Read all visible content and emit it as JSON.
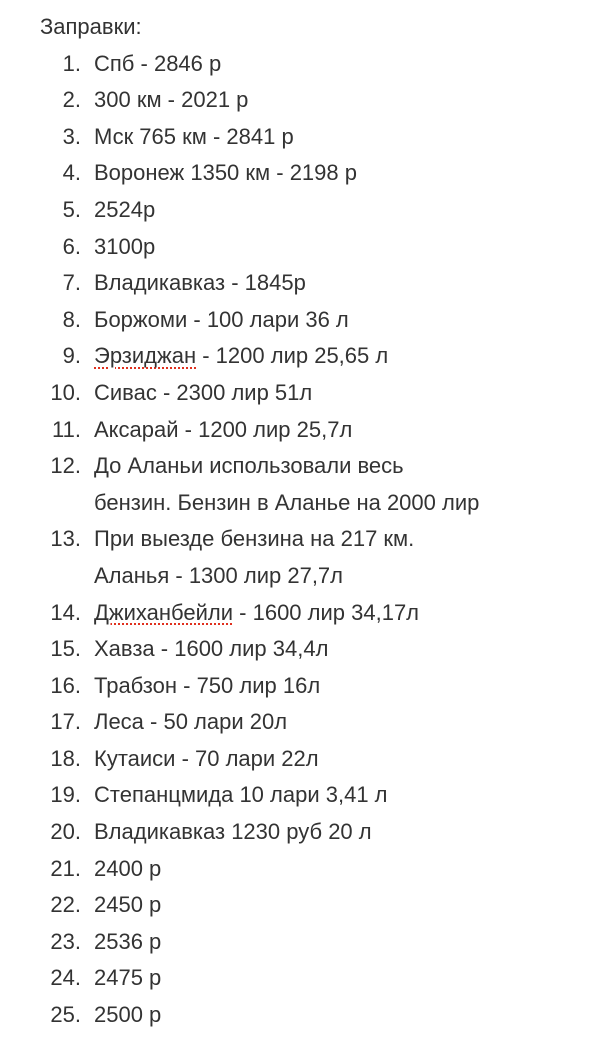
{
  "note": {
    "title": "Заправки:",
    "items": [
      {
        "num": "1.",
        "lines": [
          "Спб - 2846 р"
        ]
      },
      {
        "num": "2.",
        "lines": [
          "300 км - 2021 р"
        ]
      },
      {
        "num": "3.",
        "lines": [
          "Мск 765 км - 2841 р"
        ]
      },
      {
        "num": "4.",
        "lines": [
          "Воронеж 1350 км - 2198 р"
        ]
      },
      {
        "num": "5.",
        "lines": [
          "2524р"
        ]
      },
      {
        "num": "6.",
        "lines": [
          "3100р"
        ]
      },
      {
        "num": "7.",
        "lines": [
          "Владикавказ - 1845р"
        ]
      },
      {
        "num": "8.",
        "lines": [
          "Боржоми - 100 лари 36 л"
        ]
      },
      {
        "num": "9.",
        "misspelled": "Эрзиджан",
        "lines": [
          " - 1200 лир 25,65 л"
        ]
      },
      {
        "num": "10.",
        "lines": [
          "Сивас - 2300 лир 51л"
        ]
      },
      {
        "num": "11.",
        "lines": [
          "Аксарай - 1200 лир 25,7л"
        ]
      },
      {
        "num": "12.",
        "lines": [
          "До Аланьи использовали весь",
          "бензин. Бензин в Аланье на 2000 лир"
        ]
      },
      {
        "num": "13.",
        "lines": [
          "При выезде бензина на 217 км.",
          "Аланья - 1300 лир 27,7л"
        ]
      },
      {
        "num": "14.",
        "misspelled": "Джиханбейли",
        "lines": [
          " - 1600 лир 34,17л"
        ]
      },
      {
        "num": "15.",
        "lines": [
          "Хавза - 1600 лир 34,4л"
        ]
      },
      {
        "num": "16.",
        "lines": [
          "Трабзон - 750 лир 16л"
        ]
      },
      {
        "num": "17.",
        "lines": [
          "Леса - 50 лари 20л"
        ]
      },
      {
        "num": "18.",
        "lines": [
          "Кутаиси - 70 лари 22л"
        ]
      },
      {
        "num": "19.",
        "lines": [
          "Степанцмида 10 лари 3,41 л"
        ]
      },
      {
        "num": "20.",
        "lines": [
          "Владикавказ 1230 руб 20 л"
        ]
      },
      {
        "num": "21.",
        "lines": [
          "2400 р"
        ]
      },
      {
        "num": "22.",
        "lines": [
          "2450 р"
        ]
      },
      {
        "num": "23.",
        "lines": [
          "2536 р"
        ]
      },
      {
        "num": "24.",
        "lines": [
          "2475 р"
        ]
      },
      {
        "num": "25.",
        "lines": [
          "2500 р"
        ]
      }
    ]
  },
  "colors": {
    "text": "#333333",
    "spellcheck": "#e0301e"
  }
}
